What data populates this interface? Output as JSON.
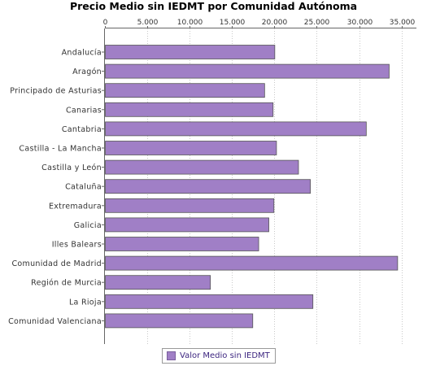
{
  "chart_data": {
    "type": "bar",
    "orientation": "horizontal",
    "title": "Precio Medio sin IEDMT por Comunidad Autónoma",
    "xlabel": "",
    "ylabel": "",
    "xlim": [
      0,
      36000
    ],
    "x_ticks": [
      0,
      5000,
      10000,
      15000,
      20000,
      25000,
      30000,
      35000
    ],
    "x_tick_labels": [
      "0",
      "5.000",
      "10.000",
      "15.000",
      "20.000",
      "25.000",
      "30.000",
      "35.000"
    ],
    "axis_position": "top",
    "grid": true,
    "legend_position": "bottom",
    "categories": [
      "Andalucía",
      "Aragón",
      "Principado de Asturias",
      "Canarias",
      "Cantabria",
      "Castilla - La Mancha",
      "Castilla y León",
      "Cataluña",
      "Extremadura",
      "Galicia",
      "Illes Balears",
      "Comunidad de Madrid",
      "Región de Murcia",
      "La Rioja",
      "Comunidad Valenciana"
    ],
    "series": [
      {
        "name": "Valor Medio sin IEDMT",
        "color": "#a07fc6",
        "values": [
          20000,
          33500,
          18800,
          19800,
          30800,
          20200,
          22800,
          24200,
          19900,
          19300,
          18100,
          34500,
          12400,
          24500,
          17400
        ]
      }
    ]
  }
}
